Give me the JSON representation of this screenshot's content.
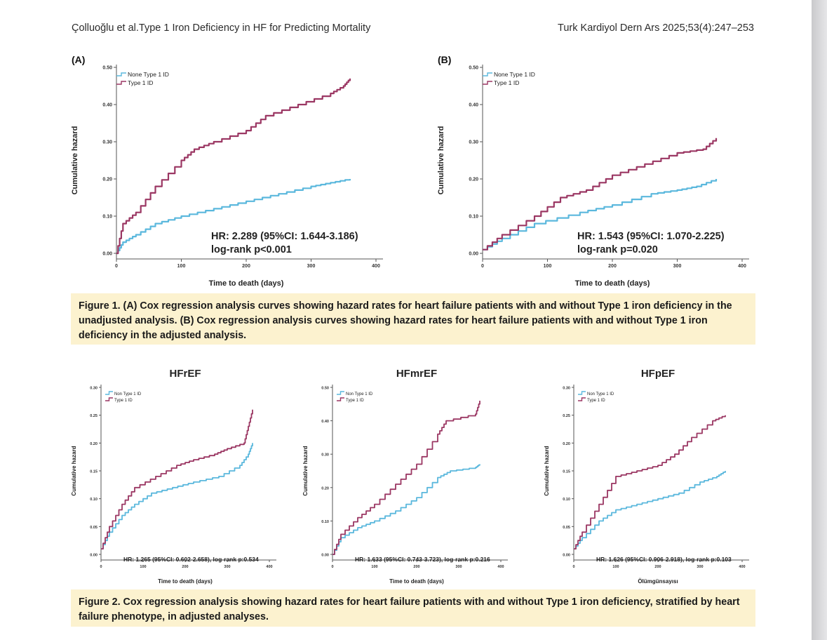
{
  "header": {
    "left": "Çolluoğlu et al.Type 1 Iron Deficiency in HF for Predicting Mortality",
    "right": "Turk Kardiyol Dern Ars 2025;53(4):247–253"
  },
  "figure1": {
    "caption": "Figure 1. (A) Cox regression analysis curves showing hazard rates for heart failure patients with and without Type 1 iron deficiency in the unadjusted analysis. (B) Cox regression analysis curves showing hazard rates for heart failure patients with and without Type 1 iron deficiency in the adjusted analysis."
  },
  "figure2": {
    "caption": "Figure 2. Cox regression analysis showing hazard rates for heart failure patients with and without Type 1 iron deficiency, stratified by heart failure phenotype, in adjusted analyses."
  },
  "colors": {
    "non_type1": "#5bb8dd",
    "type1": "#9b3763",
    "caption_bg": "#fcf2cf"
  },
  "chart_data": [
    {
      "id": "A",
      "type": "line",
      "panel_label": "(A)",
      "title": "",
      "xlabel": "Time to death (days)",
      "ylabel": "Cumulative hazard",
      "xlim": [
        0,
        400
      ],
      "ylim": [
        0,
        0.5
      ],
      "xticks": [
        "0",
        "100",
        "200",
        "300",
        "400"
      ],
      "yticks": [
        "0.00",
        "0.10",
        "0.20",
        "0.30",
        "0.40",
        "0.50"
      ],
      "legend": [
        "None Type 1 ID",
        "Type 1 ID"
      ],
      "hr_line1": "HR: 2.289 (95%CI: 1.644-3.186)",
      "hr_line2": "log-rank p<0.001",
      "series": [
        {
          "name": "None Type 1 ID",
          "x": [
            0,
            10,
            30,
            60,
            100,
            150,
            200,
            250,
            300,
            330,
            360
          ],
          "values": [
            0.0,
            0.03,
            0.05,
            0.08,
            0.1,
            0.12,
            0.14,
            0.16,
            0.18,
            0.19,
            0.2
          ]
        },
        {
          "name": "Type 1 ID",
          "x": [
            0,
            10,
            30,
            60,
            100,
            120,
            150,
            200,
            230,
            280,
            330,
            350,
            360
          ],
          "values": [
            0.0,
            0.08,
            0.11,
            0.18,
            0.25,
            0.28,
            0.3,
            0.33,
            0.37,
            0.4,
            0.43,
            0.45,
            0.47
          ]
        }
      ]
    },
    {
      "id": "B",
      "type": "line",
      "panel_label": "(B)",
      "title": "",
      "xlabel": "Time to death (days)",
      "ylabel": "Cumulative hazard",
      "xlim": [
        0,
        400
      ],
      "ylim": [
        0,
        0.5
      ],
      "xticks": [
        "0",
        "100",
        "200",
        "300",
        "400"
      ],
      "yticks": [
        "0.00",
        "0.10",
        "0.20",
        "0.30",
        "0.40",
        "0.50"
      ],
      "legend": [
        "None Type 1 ID",
        "Type 1 ID"
      ],
      "hr_line1": "HR: 1.543 (95%CI: 1.070-2.225)",
      "hr_line2": "log-rank p=0.020",
      "series": [
        {
          "name": "None Type 1 ID",
          "x": [
            0,
            30,
            80,
            150,
            200,
            260,
            300,
            330,
            360
          ],
          "values": [
            0.01,
            0.04,
            0.08,
            0.11,
            0.13,
            0.16,
            0.17,
            0.18,
            0.2
          ]
        },
        {
          "name": "Type 1 ID",
          "x": [
            0,
            30,
            80,
            120,
            160,
            200,
            250,
            300,
            340,
            360
          ],
          "values": [
            0.01,
            0.05,
            0.1,
            0.15,
            0.17,
            0.21,
            0.24,
            0.27,
            0.28,
            0.31
          ]
        }
      ]
    },
    {
      "id": "HFrEF",
      "type": "line",
      "panel_label": "",
      "title": "HFrEF",
      "xlabel": "Time to death (days)",
      "ylabel": "Cumulative hazard",
      "xlim": [
        0,
        400
      ],
      "ylim": [
        0,
        0.3
      ],
      "xticks": [
        "0",
        "100",
        "200",
        "300",
        "400"
      ],
      "yticks": [
        "0.00",
        "0.05",
        "0.10",
        "0.15",
        "0.20",
        "0.25",
        "0.30"
      ],
      "legend": [
        "Non Type 1 ID",
        "Type 1 ID"
      ],
      "hr_line1": "HR: 1.265 (95%CI: 0.602-2.658), log-rank p:0.534",
      "hr_line2": "",
      "series": [
        {
          "name": "Non Type 1 ID",
          "x": [
            0,
            20,
            50,
            80,
            120,
            170,
            220,
            280,
            330,
            350,
            360
          ],
          "values": [
            0.01,
            0.04,
            0.07,
            0.09,
            0.11,
            0.12,
            0.13,
            0.14,
            0.16,
            0.18,
            0.2
          ]
        },
        {
          "name": "Type 1 ID",
          "x": [
            0,
            20,
            50,
            80,
            130,
            180,
            220,
            270,
            300,
            340,
            350,
            360
          ],
          "values": [
            0.01,
            0.05,
            0.09,
            0.12,
            0.14,
            0.16,
            0.17,
            0.18,
            0.19,
            0.2,
            0.23,
            0.26
          ]
        }
      ]
    },
    {
      "id": "HFmrEF",
      "type": "line",
      "panel_label": "",
      "title": "HFmrEF",
      "xlabel": "Time to death (days)",
      "ylabel": "Cumulative hazard",
      "xlim": [
        0,
        400
      ],
      "ylim": [
        0,
        0.5
      ],
      "xticks": [
        "0",
        "100",
        "200",
        "300",
        "400"
      ],
      "yticks": [
        "0.00",
        "0.10",
        "0.20",
        "0.30",
        "0.40",
        "0.50"
      ],
      "legend": [
        "Non Type 1 ID",
        "Type 1 ID"
      ],
      "hr_line1": "HR: 1.633 (95%CI: 0.743-3.723), log-rank p:0.216",
      "hr_line2": "",
      "series": [
        {
          "name": "Non Type 1 ID",
          "x": [
            0,
            20,
            60,
            100,
            150,
            200,
            250,
            280,
            340,
            350
          ],
          "values": [
            0.0,
            0.05,
            0.08,
            0.1,
            0.13,
            0.17,
            0.23,
            0.25,
            0.26,
            0.27
          ]
        },
        {
          "name": "Type 1 ID",
          "x": [
            0,
            20,
            60,
            100,
            150,
            200,
            250,
            270,
            340,
            350
          ],
          "values": [
            0.0,
            0.06,
            0.11,
            0.15,
            0.21,
            0.27,
            0.36,
            0.4,
            0.42,
            0.46
          ]
        }
      ]
    },
    {
      "id": "HFpEF",
      "type": "line",
      "panel_label": "",
      "title": "HFpEF",
      "xlabel": "Ölümgünsayısı",
      "ylabel": "Cumulative hazard",
      "xlim": [
        0,
        400
      ],
      "ylim": [
        0,
        0.3
      ],
      "xticks": [
        "0",
        "100",
        "200",
        "300",
        "400"
      ],
      "yticks": [
        "0.00",
        "0.05",
        "0.10",
        "0.15",
        "0.20",
        "0.25",
        "0.30"
      ],
      "legend": [
        "Non Type 1 ID",
        "Type 1 ID"
      ],
      "hr_line1": "HR: 1.626 (95%CI: 0.906-2.918), log-rank p:0.103",
      "hr_line2": "",
      "series": [
        {
          "name": "Non Type 1 ID",
          "x": [
            0,
            20,
            60,
            100,
            150,
            200,
            250,
            300,
            340,
            360
          ],
          "values": [
            0.01,
            0.03,
            0.06,
            0.08,
            0.09,
            0.1,
            0.11,
            0.13,
            0.14,
            0.15
          ]
        },
        {
          "name": "Type 1 ID",
          "x": [
            0,
            20,
            60,
            100,
            150,
            200,
            240,
            280,
            330,
            360
          ],
          "values": [
            0.01,
            0.04,
            0.09,
            0.14,
            0.15,
            0.16,
            0.18,
            0.21,
            0.24,
            0.25
          ]
        }
      ]
    }
  ]
}
